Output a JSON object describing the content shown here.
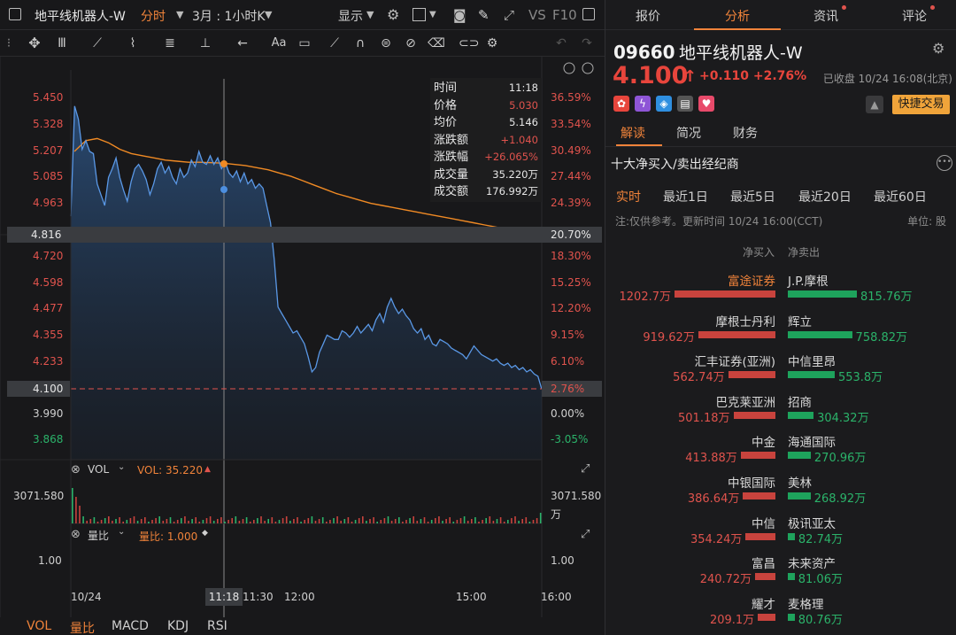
{
  "header": {
    "stock_title": "地平线机器人-W",
    "timeframe": "分时",
    "range": "3月 : 1小时K",
    "display_label": "显示"
  },
  "chart": {
    "y_labels_left": [
      "5.450",
      "5.328",
      "5.207",
      "5.085",
      "4.963",
      "4.816",
      "4.720",
      "4.598",
      "4.477",
      "4.355",
      "4.233",
      "4.100",
      "3.990",
      "3.868"
    ],
    "y_labels_right": [
      "36.59%",
      "33.54%",
      "30.49%",
      "27.44%",
      "24.39%",
      "20.70%",
      "18.30%",
      "15.25%",
      "12.20%",
      "9.15%",
      "6.10%",
      "2.76%",
      "0.00%",
      "-3.05%"
    ],
    "crosshair_price": "4.816",
    "crosshair_pct": "20.70%",
    "last_price_box": "4.100",
    "last_pct_box": "2.76%",
    "x_labels": [
      "10/24",
      "11:18",
      "11:30",
      "12:00",
      "15:00",
      "16:00"
    ],
    "tooltip": {
      "rows": [
        {
          "k": "时间",
          "v": "11:18"
        },
        {
          "k": "价格",
          "v": "5.030"
        },
        {
          "k": "均价",
          "v": "5.146"
        },
        {
          "k": "涨跌额",
          "v": "+1.040"
        },
        {
          "k": "涨跌幅",
          "v": "+26.065%"
        },
        {
          "k": "成交量",
          "v": "35.220万"
        },
        {
          "k": "成交额",
          "v": "176.992万"
        }
      ]
    },
    "price_series": [
      4.9,
      5.41,
      5.35,
      5.21,
      5.25,
      5.2,
      5.19,
      5.05,
      5.0,
      4.95,
      5.08,
      5.12,
      5.17,
      5.08,
      5.02,
      4.97,
      5.06,
      5.12,
      5.14,
      5.11,
      5.07,
      5.0,
      5.05,
      5.12,
      5.15,
      5.1,
      5.13,
      5.08,
      5.05,
      5.12,
      5.08,
      5.1,
      5.16,
      5.13,
      5.2,
      5.15,
      5.14,
      5.18,
      5.14,
      5.17,
      5.12,
      5.15,
      5.1,
      5.08,
      5.11,
      5.06,
      5.1,
      5.05,
      5.07,
      5.03,
      5.05,
      5.03,
      4.95,
      4.87,
      4.7,
      4.48,
      4.45,
      4.42,
      4.39,
      4.36,
      4.37,
      4.34,
      4.31,
      4.25,
      4.18,
      4.2,
      4.27,
      4.31,
      4.35,
      4.34,
      4.33,
      4.33,
      4.37,
      4.36,
      4.34,
      4.36,
      4.39,
      4.36,
      4.38,
      4.4,
      4.37,
      4.42,
      4.45,
      4.41,
      4.48,
      4.52,
      4.48,
      4.45,
      4.47,
      4.44,
      4.42,
      4.38,
      4.36,
      4.38,
      4.33,
      4.35,
      4.31,
      4.3,
      4.33,
      4.32,
      4.31,
      4.29,
      4.28,
      4.27,
      4.26,
      4.24,
      4.27,
      4.3,
      4.28,
      4.26,
      4.25,
      4.24,
      4.23,
      4.24,
      4.22,
      4.21,
      4.22,
      4.2,
      4.21,
      4.19,
      4.2,
      4.18,
      4.19,
      4.17,
      4.16,
      4.1
    ],
    "avg_series": [
      5.2,
      5.25,
      5.26,
      5.24,
      5.21,
      5.19,
      5.18,
      5.17,
      5.16,
      5.155,
      5.15,
      5.15,
      5.148,
      5.146,
      5.14,
      5.135,
      5.125,
      5.115,
      5.1,
      5.085,
      5.065,
      5.045,
      5.025,
      5.005,
      4.99,
      4.975,
      4.96,
      4.95,
      4.94,
      4.93,
      4.92,
      4.91,
      4.9,
      4.89,
      4.88,
      4.87,
      4.86,
      4.85,
      4.84,
      4.83,
      4.82,
      4.816
    ]
  },
  "vol_panel": {
    "label": "VOL",
    "value_text": "VOL: 35.220",
    "max_left": "3071.580",
    "max_right": "3071.580",
    "unit_right": "万"
  },
  "ratio_panel": {
    "label": "量比",
    "value_text": "量比: 1.000",
    "left_value": "1.00",
    "right_value": "1.00"
  },
  "bottom_tabs": [
    "VOL",
    "量比",
    "MACD",
    "KDJ",
    "RSI"
  ],
  "right": {
    "tabs": [
      "报价",
      "分析",
      "资讯",
      "评论"
    ],
    "code": "09660",
    "name": "地平线机器人-W",
    "price": "4.100",
    "change": "+0.110 +2.76%",
    "closed_status": "已收盘 10/24 16:08(北京)",
    "quick_trade": "快捷交易",
    "subtabs": [
      "解读",
      "简况",
      "财务"
    ],
    "section_title": "十大净买入/卖出经纪商",
    "periods": [
      "实时",
      "最近1日",
      "最近5日",
      "最近20日",
      "最近60日"
    ],
    "note": "注:仅供参考。更新时间 10/24 16:00(CCT)",
    "unit": "单位: 股",
    "col_buy": "净买入",
    "col_sell": "净卖出",
    "brokers": [
      {
        "buy_name": "富途证券",
        "buy_val": "1202.7万",
        "buy": 1202.7,
        "sell_name": "J.P.摩根",
        "sell_val": "815.76万",
        "sell": 815.76
      },
      {
        "buy_name": "摩根士丹利",
        "buy_val": "919.62万",
        "buy": 919.62,
        "sell_name": "辉立",
        "sell_val": "758.82万",
        "sell": 758.82
      },
      {
        "buy_name": "汇丰证券(亚洲)",
        "buy_val": "562.74万",
        "buy": 562.74,
        "sell_name": "中信里昂",
        "sell_val": "553.8万",
        "sell": 553.8
      },
      {
        "buy_name": "巴克莱亚洲",
        "buy_val": "501.18万",
        "buy": 501.18,
        "sell_name": "招商",
        "sell_val": "304.32万",
        "sell": 304.32
      },
      {
        "buy_name": "中金",
        "buy_val": "413.88万",
        "buy": 413.88,
        "sell_name": "海通国际",
        "sell_val": "270.96万",
        "sell": 270.96
      },
      {
        "buy_name": "中银国际",
        "buy_val": "386.64万",
        "buy": 386.64,
        "sell_name": "美林",
        "sell_val": "268.92万",
        "sell": 268.92
      },
      {
        "buy_name": "中信",
        "buy_val": "354.24万",
        "buy": 354.24,
        "sell_name": "极讯亚太",
        "sell_val": "82.74万",
        "sell": 82.74
      },
      {
        "buy_name": "富昌",
        "buy_val": "240.72万",
        "buy": 240.72,
        "sell_name": "未来资产",
        "sell_val": "81.06万",
        "sell": 81.06
      },
      {
        "buy_name": "耀才",
        "buy_val": "209.1万",
        "buy": 209.1,
        "sell_name": "麦格理",
        "sell_val": "80.76万",
        "sell": 80.76
      }
    ]
  },
  "colors": {
    "up": "#e0534d",
    "down": "#2bb36a",
    "accent": "#f0833a",
    "line": "#4d8fe0",
    "avg": "#f08a24"
  }
}
